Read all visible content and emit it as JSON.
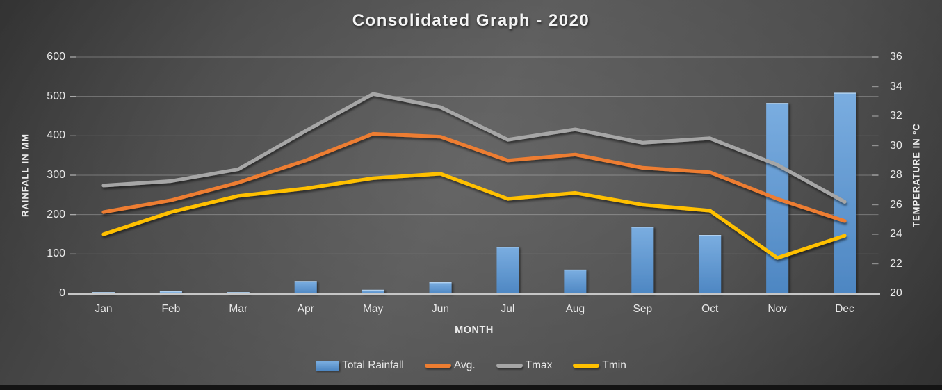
{
  "title": "Consolidated Graph - 2020",
  "axes": {
    "left": {
      "title": "RAINFALL IN MM",
      "ticks": [
        0,
        100,
        200,
        300,
        400,
        500,
        600
      ]
    },
    "right": {
      "title": "TEMPERATURE IN °C",
      "ticks": [
        20,
        22,
        24,
        26,
        28,
        30,
        32,
        34,
        36
      ]
    },
    "x": {
      "title": "MONTH"
    }
  },
  "colors": {
    "bar_top": "#7aade0",
    "bar_bottom": "#4d86c2",
    "avg": "#ED7D31",
    "tmax": "#A6A6A6",
    "tmin": "#FFC000",
    "gridline": "rgba(255,255,255,0.28)",
    "axis_line": "#c6c6c6",
    "text": "#e9e9e9"
  },
  "chart_data": {
    "type": "combo",
    "title": "Consolidated Graph - 2020",
    "xlabel": "MONTH",
    "ylabel_left": "RAINFALL IN MM",
    "ylabel_right": "TEMPERATURE IN °C",
    "ylim_left": [
      0,
      600
    ],
    "ylim_right": [
      20,
      36
    ],
    "grid": true,
    "legend_position": "bottom",
    "categories": [
      "Jan",
      "Feb",
      "Mar",
      "Apr",
      "May",
      "Jun",
      "Jul",
      "Aug",
      "Sep",
      "Oct",
      "Nov",
      "Dec"
    ],
    "series": [
      {
        "name": "Total Rainfall",
        "type": "bar",
        "axis": "left",
        "color": "#5B9BD5",
        "values": [
          2,
          4,
          2,
          30,
          8,
          27,
          117,
          59,
          168,
          147,
          482,
          508
        ]
      },
      {
        "name": "Avg.",
        "type": "line",
        "axis": "right",
        "color": "#ED7D31",
        "values": [
          25.5,
          26.3,
          27.5,
          29.0,
          30.8,
          30.6,
          29.0,
          29.4,
          28.5,
          28.2,
          26.4,
          24.9
        ]
      },
      {
        "name": "Tmax",
        "type": "line",
        "axis": "right",
        "color": "#A6A6A6",
        "values": [
          27.3,
          27.6,
          28.4,
          31.0,
          33.5,
          32.6,
          30.4,
          31.1,
          30.2,
          30.5,
          28.7,
          26.2
        ]
      },
      {
        "name": "Tmin",
        "type": "line",
        "axis": "right",
        "color": "#FFC000",
        "values": [
          24.0,
          25.5,
          26.6,
          27.1,
          27.8,
          28.1,
          26.4,
          26.8,
          26.0,
          25.6,
          22.4,
          23.9
        ]
      }
    ]
  }
}
